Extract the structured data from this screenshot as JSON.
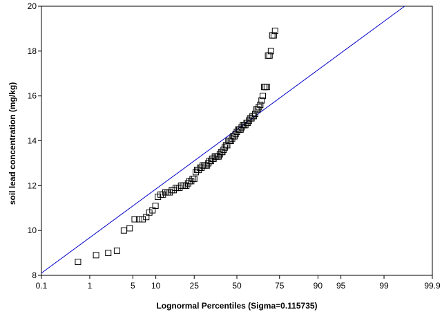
{
  "chart_data": {
    "type": "scatter",
    "title": "",
    "xlabel": "Lognormal Percentiles (Sigma=0.115735)",
    "ylabel": "soil lead concentration (mg/kg)",
    "xscale": "probit",
    "x_ticks": [
      "0.1",
      "1",
      "5",
      "10",
      "25",
      "50",
      "75",
      "90",
      "95",
      "99",
      "99.9"
    ],
    "y_ticks": [
      8,
      10,
      12,
      14,
      16,
      18,
      20
    ],
    "xlim": [
      0.1,
      99.9
    ],
    "ylim": [
      8,
      20
    ],
    "marker": "open-square",
    "fit_line": {
      "color": "#0000cc",
      "points": [
        [
          0.1,
          8.1
        ],
        [
          99.6,
          20.0
        ]
      ]
    },
    "points": [
      [
        0.6,
        8.6
      ],
      [
        1.3,
        8.9
      ],
      [
        2.1,
        9.0
      ],
      [
        2.9,
        9.1
      ],
      [
        3.7,
        10.0
      ],
      [
        4.5,
        10.1
      ],
      [
        5.3,
        10.5
      ],
      [
        6.1,
        10.5
      ],
      [
        6.8,
        10.5
      ],
      [
        7.6,
        10.6
      ],
      [
        8.3,
        10.8
      ],
      [
        9.1,
        10.9
      ],
      [
        9.9,
        11.1
      ],
      [
        10.6,
        11.5
      ],
      [
        11.4,
        11.6
      ],
      [
        12.1,
        11.6
      ],
      [
        12.9,
        11.7
      ],
      [
        13.7,
        11.7
      ],
      [
        14.4,
        11.7
      ],
      [
        15.2,
        11.8
      ],
      [
        15.9,
        11.8
      ],
      [
        16.7,
        11.9
      ],
      [
        17.4,
        11.9
      ],
      [
        18.2,
        11.9
      ],
      [
        18.9,
        12.0
      ],
      [
        19.7,
        12.0
      ],
      [
        20.5,
        12.0
      ],
      [
        21.2,
        12.0
      ],
      [
        22.0,
        12.1
      ],
      [
        22.7,
        12.2
      ],
      [
        23.5,
        12.2
      ],
      [
        24.2,
        12.3
      ],
      [
        25.0,
        12.3
      ],
      [
        25.8,
        12.6
      ],
      [
        26.5,
        12.7
      ],
      [
        27.3,
        12.7
      ],
      [
        28.0,
        12.8
      ],
      [
        28.8,
        12.8
      ],
      [
        29.5,
        12.9
      ],
      [
        30.3,
        12.9
      ],
      [
        31.1,
        12.9
      ],
      [
        31.8,
        12.9
      ],
      [
        32.6,
        13.0
      ],
      [
        33.3,
        13.1
      ],
      [
        34.1,
        13.1
      ],
      [
        34.8,
        13.2
      ],
      [
        35.6,
        13.2
      ],
      [
        36.4,
        13.3
      ],
      [
        37.1,
        13.3
      ],
      [
        37.9,
        13.3
      ],
      [
        38.6,
        13.3
      ],
      [
        39.4,
        13.4
      ],
      [
        40.2,
        13.5
      ],
      [
        40.9,
        13.5
      ],
      [
        41.7,
        13.6
      ],
      [
        42.4,
        13.7
      ],
      [
        43.2,
        13.8
      ],
      [
        43.9,
        13.8
      ],
      [
        44.7,
        14.0
      ],
      [
        45.5,
        14.0
      ],
      [
        46.2,
        14.0
      ],
      [
        47.0,
        14.1
      ],
      [
        47.7,
        14.2
      ],
      [
        48.5,
        14.2
      ],
      [
        49.2,
        14.3
      ],
      [
        50.0,
        14.4
      ],
      [
        50.8,
        14.5
      ],
      [
        51.5,
        14.5
      ],
      [
        52.3,
        14.5
      ],
      [
        53.0,
        14.6
      ],
      [
        53.8,
        14.7
      ],
      [
        54.5,
        14.7
      ],
      [
        55.3,
        14.7
      ],
      [
        56.1,
        14.8
      ],
      [
        56.8,
        14.8
      ],
      [
        57.6,
        14.9
      ],
      [
        58.3,
        15.0
      ],
      [
        59.1,
        15.0
      ],
      [
        59.8,
        15.1
      ],
      [
        60.6,
        15.1
      ],
      [
        61.4,
        15.2
      ],
      [
        62.1,
        15.4
      ],
      [
        62.9,
        15.4
      ],
      [
        63.6,
        15.5
      ],
      [
        64.4,
        15.6
      ],
      [
        65.2,
        15.8
      ],
      [
        65.9,
        16.0
      ],
      [
        66.7,
        16.4
      ],
      [
        67.4,
        16.4
      ],
      [
        68.2,
        16.4
      ],
      [
        68.9,
        17.8
      ],
      [
        69.7,
        17.8
      ],
      [
        70.5,
        18.0
      ],
      [
        71.2,
        18.7
      ],
      [
        72.0,
        18.7
      ],
      [
        72.7,
        18.9
      ]
    ]
  }
}
